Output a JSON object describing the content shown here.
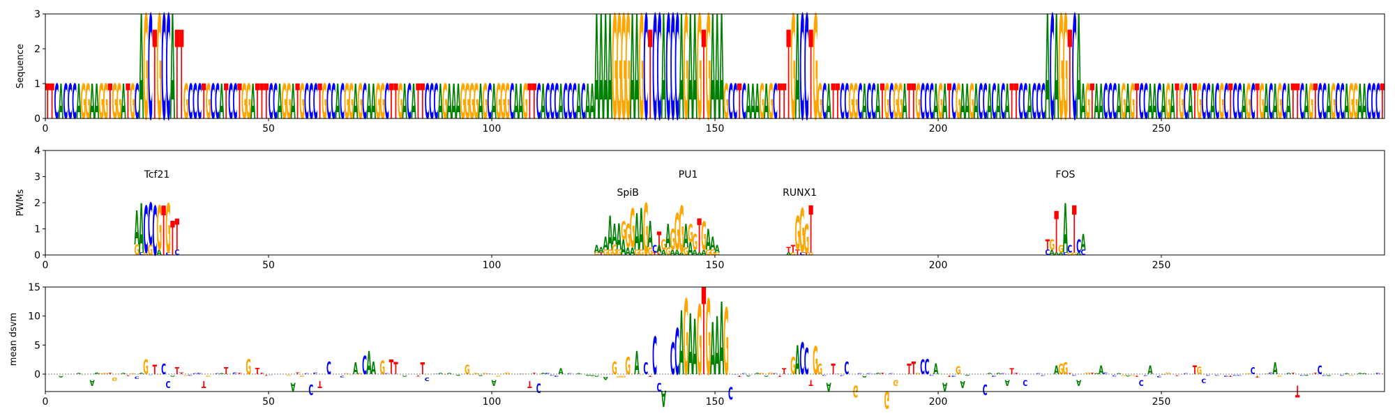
{
  "colors": {
    "A": "#008000",
    "C": "#0000ff",
    "G": "#ffa500",
    "T": "#ff0000"
  },
  "chart_data": [
    {
      "type": "sequence-logo",
      "ylabel": "Sequence",
      "xlim": [
        0,
        300
      ],
      "ylim": [
        0,
        3
      ],
      "xticks": [
        "0",
        "50",
        "100",
        "150",
        "200",
        "250"
      ],
      "yticks": [
        "0",
        "1",
        "2",
        "3"
      ],
      "sequence": "TTCACCCAGGAAGGTGGATGCAGCTGCCATTGCCCTGCCATCCTGGATTTCCAGGATGCCCTGCCACGGAGCAAGGCTTGACATTCCCAGAAAGGGGAGCAGGGCAAGTTCACCCACCCACAAAAAAGGGGAAGCTCCACCCAGAAGTGAAAGCCTCAAAGAGCTTTGACCTGGCATTCCGGCACCATGCGGATTGCCCAGATCGAAGACCACACATTCCACCCACAGGTCAAGTAACCCAGAGTCCAACAGATGCATGCCACGCTCCAGCTGACAGCATTCAGTCCAGCCAGGAACCCTGA",
      "highlights": [
        {
          "start": 21,
          "end": 30,
          "height": 3
        },
        {
          "start": 123,
          "end": 151,
          "height": 3
        },
        {
          "start": 166,
          "end": 172,
          "height": 3
        },
        {
          "start": 224,
          "end": 231,
          "height": 3
        }
      ]
    },
    {
      "type": "pwm-logo",
      "ylabel": "PWMs",
      "xlim": [
        0,
        300
      ],
      "ylim": [
        0,
        4
      ],
      "xticks": [
        "0",
        "50",
        "100",
        "150",
        "200",
        "250"
      ],
      "yticks": [
        "0",
        "1",
        "2",
        "3",
        "4"
      ],
      "motifs": [
        {
          "name": "Tcf21",
          "start": 20,
          "label_y": 3.1,
          "columns": [
            {
              "A": 1.3,
              "G": 0.4
            },
            {
              "A": 1.9,
              "C": 0.1
            },
            {
              "C": 1.8,
              "G": 0.1
            },
            {
              "C": 1.6,
              "G": 0.4
            },
            {
              "C": 1.9
            },
            {
              "A": 0.2,
              "G": 1.7
            },
            {
              "T": 1.9
            },
            {
              "G": 1.9,
              "C": 0.1
            },
            {
              "T": 1.3
            },
            {
              "T": 1.2,
              "C": 0.2
            }
          ]
        },
        {
          "name": "SpiB",
          "start": 123,
          "label_y": 2.4,
          "columns": [
            {
              "A": 0.3,
              "G": 0.1
            },
            {
              "A": 0.2,
              "T": 0.1
            },
            {
              "A": 0.5,
              "G": 0.2
            },
            {
              "A": 1.3,
              "G": 0.2
            },
            {
              "A": 0.8,
              "G": 0.4
            },
            {
              "A": 1.0,
              "G": 0.2
            },
            {
              "A": 0.6,
              "G": 0.7
            },
            {
              "G": 0.9,
              "A": 0.3
            },
            {
              "G": 1.5,
              "A": 0.3
            },
            {
              "A": 1.4,
              "G": 0.2
            },
            {
              "A": 1.6,
              "G": 0.2
            },
            {
              "G": 2.0
            },
            {
              "A": 1.0,
              "G": 0.3
            },
            {
              "C": 0.3,
              "T": 0.1
            },
            {
              "T": 0.7,
              "C": 0.2
            }
          ]
        },
        {
          "name": "PU1",
          "start": 137,
          "label_y": 3.1,
          "columns": [
            {
              "A": 0.3,
              "G": 0.1
            },
            {
              "A": 0.2,
              "G": 0.4
            },
            {
              "A": 0.9,
              "G": 0.3
            },
            {
              "G": 0.8,
              "A": 0.2
            },
            {
              "G": 1.4,
              "A": 0.2
            },
            {
              "G": 1.8,
              "A": 0.1
            },
            {
              "A": 0.9,
              "G": 0.3
            },
            {
              "A": 0.5,
              "G": 0.7
            },
            {
              "G": 0.6,
              "A": 0.2
            },
            {
              "T": 1.3,
              "A": 0.1
            },
            {
              "G": 1.1,
              "A": 0.2
            },
            {
              "A": 0.8,
              "G": 0.2
            },
            {
              "A": 0.5,
              "G": 0.2
            },
            {
              "A": 0.3,
              "G": 0.1
            }
          ]
        },
        {
          "name": "RUNX1",
          "start": 166,
          "label_y": 2.4,
          "columns": [
            {
              "T": 0.2,
              "A": 0.1
            },
            {
              "T": 0.3,
              "G": 0.1
            },
            {
              "G": 1.3,
              "T": 0.2
            },
            {
              "G": 1.7,
              "C": 0.1
            },
            {
              "G": 1.1,
              "T": 0.1
            },
            {
              "T": 1.8,
              "G": 0.1
            }
          ]
        },
        {
          "name": "FOS",
          "start": 224,
          "label_y": 3.1,
          "columns": [
            {
              "T": 0.4,
              "C": 0.2
            },
            {
              "G": 0.4,
              "A": 0.2
            },
            {
              "T": 1.6,
              "A": 0.1
            },
            {
              "G": 0.3,
              "A": 0.1
            },
            {
              "A": 1.9,
              "C": 0.1
            },
            {
              "C": 0.3,
              "G": 0.1
            },
            {
              "T": 1.8,
              "G": 0.1
            },
            {
              "C": 0.5,
              "A": 0.1
            },
            {
              "A": 0.6,
              "C": 0.2
            }
          ]
        }
      ]
    },
    {
      "type": "attribution-logo",
      "ylabel": "mean dsvm",
      "xlim": [
        0,
        300
      ],
      "ylim": [
        -3,
        15
      ],
      "xticks": [
        "0",
        "50",
        "100",
        "150",
        "200",
        "250"
      ],
      "yticks": [
        "0",
        "5",
        "10",
        "15"
      ],
      "peaks": [
        [
          22,
          2.5
        ],
        [
          24,
          1.6
        ],
        [
          26,
          1.8
        ],
        [
          29,
          1.2
        ],
        [
          40,
          1.2
        ],
        [
          45,
          2.6
        ],
        [
          47,
          1.1
        ],
        [
          59,
          1.3
        ],
        [
          63,
          2.2
        ],
        [
          69,
          2.0
        ],
        [
          71,
          3.2
        ],
        [
          72,
          4.0
        ],
        [
          73,
          2.2
        ],
        [
          75,
          2.3
        ],
        [
          77,
          2.5
        ],
        [
          78,
          2.1
        ],
        [
          84,
          2.0
        ],
        [
          94,
          1.6
        ],
        [
          100,
          1.0
        ],
        [
          108,
          1.4
        ],
        [
          115,
          1.0
        ],
        [
          127,
          2.2
        ],
        [
          130,
          3.0
        ],
        [
          132,
          4.0
        ],
        [
          134,
          2.0
        ],
        [
          136,
          6.5
        ],
        [
          137,
          3.2
        ],
        [
          138,
          4.5
        ],
        [
          140,
          5.5
        ],
        [
          141,
          8.0
        ],
        [
          142,
          11.0
        ],
        [
          143,
          13.0
        ],
        [
          144,
          10.5
        ],
        [
          145,
          9.5
        ],
        [
          146,
          12.0
        ],
        [
          147,
          15.0
        ],
        [
          148,
          13.0
        ],
        [
          149,
          9.0
        ],
        [
          150,
          10.0
        ],
        [
          151,
          12.5
        ],
        [
          152,
          11.5
        ],
        [
          165,
          1.0
        ],
        [
          167,
          3.0
        ],
        [
          168,
          5.0
        ],
        [
          169,
          5.5
        ],
        [
          170,
          4.5
        ],
        [
          171,
          6.2
        ],
        [
          172,
          4.8
        ],
        [
          173,
          1.8
        ],
        [
          176,
          1.8
        ],
        [
          179,
          2.2
        ],
        [
          193,
          1.8
        ],
        [
          194,
          2.2
        ],
        [
          196,
          2.5
        ],
        [
          197,
          2.6
        ],
        [
          199,
          1.9
        ],
        [
          204,
          1.4
        ],
        [
          216,
          1.0
        ],
        [
          226,
          1.5
        ],
        [
          227,
          1.8
        ],
        [
          228,
          2.0
        ],
        [
          236,
          1.5
        ],
        [
          247,
          1.5
        ],
        [
          257,
          1.5
        ],
        [
          258,
          1.3
        ],
        [
          270,
          1.2
        ],
        [
          275,
          2.0
        ],
        [
          285,
          1.5
        ]
      ],
      "troughs": [
        [
          10,
          -1.0
        ],
        [
          15,
          -0.6
        ],
        [
          20,
          -0.4
        ],
        [
          27,
          -1.2
        ],
        [
          35,
          -1.2
        ],
        [
          55,
          -1.5
        ],
        [
          59,
          -1.8
        ],
        [
          61,
          -1.2
        ],
        [
          85,
          -0.6
        ],
        [
          100,
          -1.0
        ],
        [
          108,
          -1.2
        ],
        [
          110,
          -1.6
        ],
        [
          125,
          -0.5
        ],
        [
          137,
          -1.5
        ],
        [
          138,
          -2.8
        ],
        [
          153,
          -2.2
        ],
        [
          171,
          -1.0
        ],
        [
          175,
          -1.5
        ],
        [
          181,
          -2.0
        ],
        [
          188,
          -3.0
        ],
        [
          190,
          -1.0
        ],
        [
          201,
          -1.5
        ],
        [
          205,
          -1.2
        ],
        [
          210,
          -1.8
        ],
        [
          215,
          -1.0
        ],
        [
          219,
          -1.0
        ],
        [
          231,
          -1.0
        ],
        [
          245,
          -1.0
        ],
        [
          259,
          -0.8
        ],
        [
          280,
          -2.0
        ]
      ]
    }
  ]
}
